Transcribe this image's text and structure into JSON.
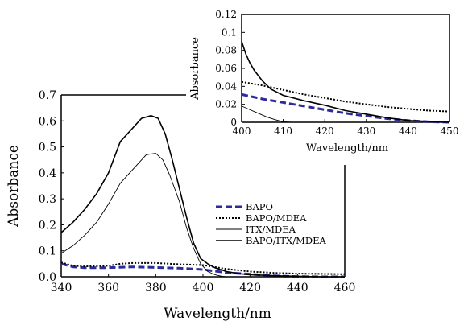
{
  "chart_data": [
    {
      "type": "line",
      "panel": "main",
      "xlabel": "Wavelength/nm",
      "ylabel": "Absorbance",
      "xlim": [
        340,
        460
      ],
      "ylim": [
        0.0,
        0.7
      ],
      "xticks": [
        "340",
        "360",
        "380",
        "400",
        "420",
        "440",
        "460"
      ],
      "yticks": [
        "0.0",
        "0.1",
        "0.2",
        "0.3",
        "0.4",
        "0.5",
        "0.6",
        "0.7"
      ],
      "legend_position": "lower-right",
      "series": [
        {
          "name": "BAPO",
          "color": "#2b2b9c",
          "style": "dashed",
          "x": [
            340,
            345,
            350,
            360,
            370,
            380,
            390,
            400,
            405,
            410,
            420,
            430,
            440,
            450,
            460
          ],
          "y": [
            0.05,
            0.038,
            0.035,
            0.035,
            0.038,
            0.036,
            0.033,
            0.028,
            0.022,
            0.016,
            0.01,
            0.004,
            0.001,
            0.0,
            0.0
          ]
        },
        {
          "name": "BAPO/MDEA",
          "color": "#000000",
          "style": "dotted",
          "x": [
            340,
            345,
            350,
            360,
            365,
            370,
            380,
            390,
            400,
            410,
            420,
            430,
            440,
            450,
            460
          ],
          "y": [
            0.055,
            0.042,
            0.04,
            0.042,
            0.05,
            0.053,
            0.053,
            0.048,
            0.045,
            0.03,
            0.02,
            0.015,
            0.012,
            0.011,
            0.01
          ]
        },
        {
          "name": "ITX/MDEA",
          "color": "#000000",
          "style": "thin",
          "x": [
            340,
            345,
            350,
            355,
            360,
            365,
            368,
            372,
            376,
            380,
            383,
            386,
            390,
            393,
            396,
            399,
            402,
            405,
            408,
            410,
            420,
            440,
            460
          ],
          "y": [
            0.09,
            0.12,
            0.16,
            0.21,
            0.28,
            0.36,
            0.39,
            0.43,
            0.47,
            0.475,
            0.45,
            0.39,
            0.29,
            0.19,
            0.11,
            0.05,
            0.02,
            0.008,
            0.002,
            0.0,
            0.0,
            0.0,
            0.0
          ]
        },
        {
          "name": "BAPO/ITX/MDEA",
          "color": "#000000",
          "style": "solid",
          "x": [
            340,
            345,
            350,
            355,
            360,
            365,
            370,
            374,
            378,
            381,
            384,
            387,
            390,
            393,
            396,
            399,
            402,
            405,
            410,
            415,
            420,
            430,
            440,
            450,
            460
          ],
          "y": [
            0.17,
            0.21,
            0.26,
            0.32,
            0.4,
            0.52,
            0.57,
            0.61,
            0.62,
            0.61,
            0.55,
            0.45,
            0.34,
            0.23,
            0.13,
            0.07,
            0.05,
            0.035,
            0.02,
            0.012,
            0.008,
            0.004,
            0.002,
            0.0,
            0.0
          ]
        }
      ]
    },
    {
      "type": "line",
      "panel": "inset",
      "xlabel": "Wavelength/nm",
      "ylabel": "Absorbance",
      "xlim": [
        400,
        450
      ],
      "ylim": [
        0.0,
        0.12
      ],
      "xticks": [
        "400",
        "410",
        "420",
        "430",
        "440",
        "450"
      ],
      "yticks": [
        "0",
        "0.02",
        "0.04",
        "0.06",
        "0.08",
        "0.1",
        "0.12"
      ],
      "series": [
        {
          "name": "BAPO",
          "color": "#2b2b9c",
          "style": "dashed",
          "x": [
            400,
            405,
            410,
            415,
            420,
            425,
            430,
            435,
            440,
            445,
            450
          ],
          "y": [
            0.031,
            0.026,
            0.022,
            0.018,
            0.014,
            0.01,
            0.007,
            0.004,
            0.002,
            0.0005,
            0.0
          ]
        },
        {
          "name": "BAPO/MDEA",
          "color": "#000000",
          "style": "dotted",
          "x": [
            400,
            405,
            410,
            415,
            420,
            425,
            430,
            435,
            440,
            445,
            450
          ],
          "y": [
            0.045,
            0.041,
            0.036,
            0.031,
            0.027,
            0.023,
            0.02,
            0.017,
            0.015,
            0.013,
            0.012
          ]
        },
        {
          "name": "ITX/MDEA",
          "color": "#000000",
          "style": "thin",
          "x": [
            400,
            402,
            404,
            406,
            408,
            410,
            412
          ],
          "y": [
            0.018,
            0.014,
            0.01,
            0.006,
            0.003,
            0.0005,
            0.0
          ]
        },
        {
          "name": "BAPO/ITX/MDEA",
          "color": "#000000",
          "style": "solid",
          "x": [
            400,
            401,
            402,
            403,
            405,
            407,
            410,
            415,
            420,
            425,
            430,
            435,
            440,
            445,
            450
          ],
          "y": [
            0.09,
            0.076,
            0.066,
            0.058,
            0.046,
            0.037,
            0.03,
            0.024,
            0.019,
            0.013,
            0.009,
            0.005,
            0.002,
            0.001,
            0.0
          ]
        }
      ]
    }
  ]
}
